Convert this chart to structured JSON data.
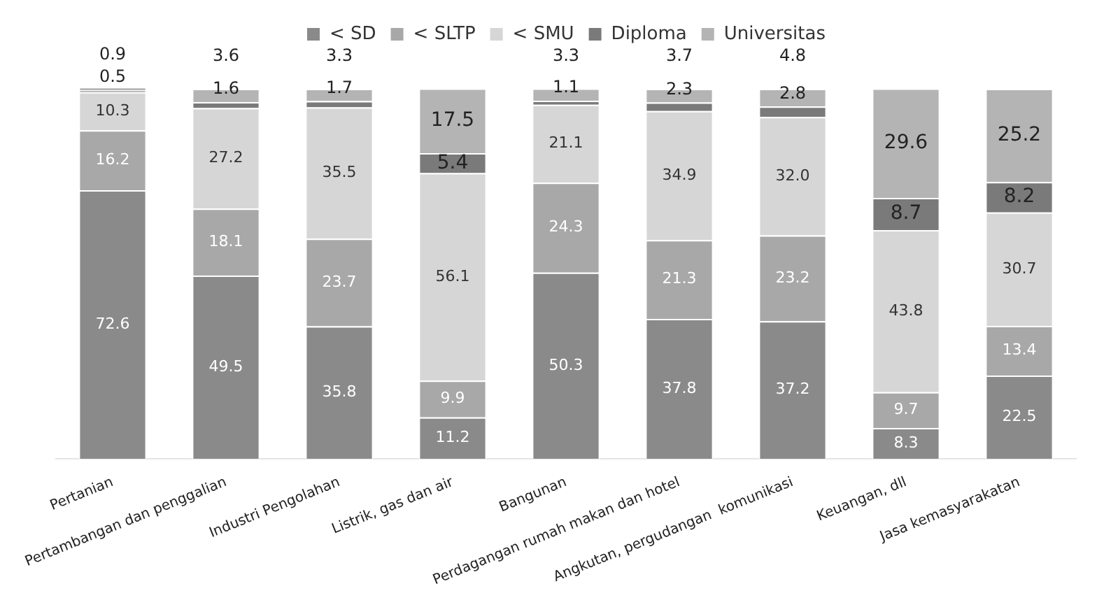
{
  "chart_data": {
    "type": "bar",
    "stacked": true,
    "data_labels": true,
    "legend": "top",
    "grid": false,
    "categories": [
      "Pertanian",
      "Pertambangan dan penggalian",
      "Industri Pengolahan",
      "Listrik, gas dan air",
      "Bangunan",
      "Perdagangan rumah makan dan hotel",
      "Angkutan, pergudangan  komunikasi",
      "Keuangan, dll",
      "Jasa kemasyarakatan"
    ],
    "ylim": [
      0,
      100.5
    ],
    "series": [
      {
        "name": "< SD",
        "color": "#8a8a8a",
        "values": [
          72.6,
          49.5,
          35.8,
          11.2,
          50.3,
          37.8,
          37.2,
          8.3,
          22.5
        ]
      },
      {
        "name": "< SLTP",
        "color": "#a8a8a8",
        "values": [
          16.2,
          18.1,
          23.7,
          9.9,
          24.3,
          21.3,
          23.2,
          9.7,
          13.4
        ]
      },
      {
        "name": "< SMU",
        "color": "#d6d6d6",
        "values": [
          10.3,
          27.2,
          35.5,
          56.1,
          21.1,
          34.9,
          32.0,
          43.8,
          30.7
        ],
        "value_labels": [
          "10.3",
          "27.2",
          "35.5",
          "56.1",
          "21.1",
          "34.9",
          "32.0",
          "43.8",
          "30.7"
        ]
      },
      {
        "name": "Diploma",
        "color": "#7a7a7a",
        "values": [
          0.5,
          1.6,
          1.7,
          5.4,
          1.1,
          2.3,
          2.8,
          8.7,
          8.2
        ]
      },
      {
        "name": "Universitas",
        "color": "#b4b4b4",
        "values": [
          0.9,
          3.6,
          3.3,
          17.5,
          3.3,
          3.7,
          4.8,
          29.6,
          25.2
        ]
      }
    ]
  }
}
